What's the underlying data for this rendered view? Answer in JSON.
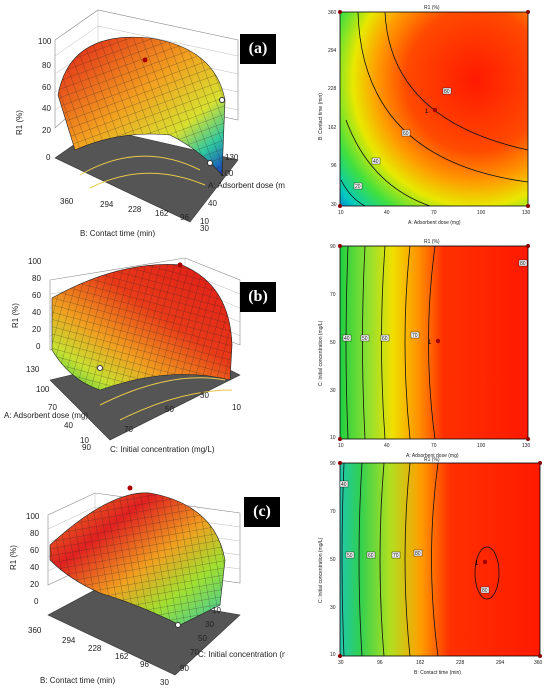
{
  "chart_data": [
    {
      "type": "surface3d",
      "panel_label": "(a)",
      "zlabel": "R1 (%)",
      "z_ticks": [
        "0",
        "20",
        "40",
        "60",
        "80",
        "100"
      ],
      "x_axis_label": "A: Adsorbent dose (mg)",
      "x_ticks": [
        "10",
        "40",
        "100",
        "130"
      ],
      "y_axis_label": "B: Contact time (min)",
      "y_ticks": [
        "360",
        "294",
        "228",
        "162",
        "96",
        "30"
      ]
    },
    {
      "type": "contour",
      "title": "R1 (%)",
      "xlabel": "A: Adsorbent dose (mg)",
      "x_ticks": [
        "10",
        "40",
        "70",
        "100",
        "130"
      ],
      "ylabel": "B: Contact time (min)",
      "y_ticks": [
        "30",
        "96",
        "162",
        "228",
        "294",
        "360"
      ],
      "contour_labels": [
        "20",
        "40",
        "60",
        "80"
      ],
      "optimum_marker": "1"
    },
    {
      "type": "surface3d",
      "panel_label": "(b)",
      "zlabel": "R1 (%)",
      "z_ticks": [
        "0",
        "20",
        "40",
        "60",
        "80",
        "100"
      ],
      "x_axis_label": "C: Initial concentration (mg/L)",
      "x_ticks": [
        "90",
        "70",
        "50",
        "30",
        "10"
      ],
      "y_axis_label": "A: Adsorbent dose (mg)",
      "y_ticks": [
        "130",
        "100",
        "70",
        "40",
        "10"
      ]
    },
    {
      "type": "contour",
      "title": "R1 (%)",
      "xlabel": "A: Adsorbent dose (mg)",
      "x_ticks": [
        "10",
        "40",
        "70",
        "100",
        "130"
      ],
      "ylabel": "C: Initial concentration (mg/L)",
      "y_ticks": [
        "10",
        "30",
        "50",
        "70",
        "90"
      ],
      "contour_labels": [
        "40",
        "50",
        "60",
        "70",
        "80"
      ],
      "optimum_marker": "1"
    },
    {
      "type": "surface3d",
      "panel_label": "(c)",
      "zlabel": "R1 (%)",
      "z_ticks": [
        "0",
        "20",
        "40",
        "60",
        "80",
        "100"
      ],
      "x_axis_label": "C: Initial concentration (mg/L)",
      "x_ticks": [
        "10",
        "30",
        "50",
        "70",
        "90"
      ],
      "y_axis_label": "B: Contact time (min)",
      "y_ticks": [
        "360",
        "294",
        "228",
        "162",
        "96",
        "30"
      ]
    },
    {
      "type": "contour",
      "title": "R1 (%)",
      "xlabel": "B: Contact time (min)",
      "x_ticks": [
        "30",
        "96",
        "162",
        "228",
        "294",
        "360"
      ],
      "ylabel": "C: Initial concentration (mg/L)",
      "y_ticks": [
        "10",
        "30",
        "50",
        "70",
        "90"
      ],
      "contour_labels": [
        "40",
        "50",
        "60",
        "70",
        "80",
        "80"
      ],
      "optimum_marker": "1"
    }
  ]
}
